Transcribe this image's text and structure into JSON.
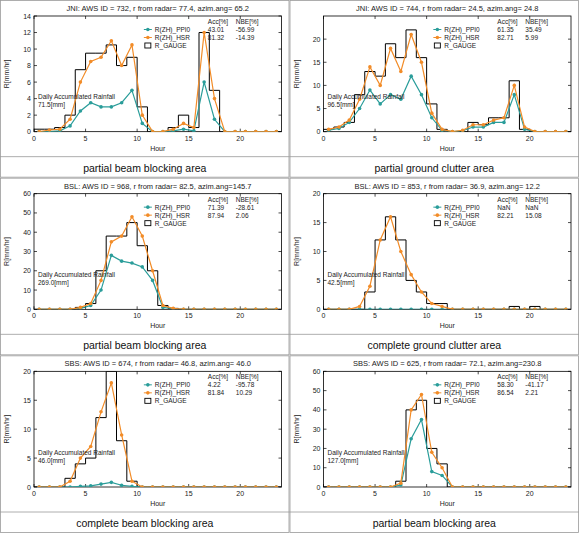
{
  "chart_data": [
    {
      "type": "line",
      "title": "JNI: AWS ID = 732, r from radar= 77.4, azim.ang= 65.2",
      "caption": "partial beam blocking area",
      "x_label": "Hour",
      "y_label": "R[mm/hr]",
      "xlim": [
        0,
        24
      ],
      "xticks": [
        0,
        5,
        10,
        15,
        20
      ],
      "ylim": [
        0,
        14
      ],
      "yticks": [
        0,
        2,
        4,
        6,
        8,
        10,
        12,
        14
      ],
      "stats_header": [
        "Acc[%]",
        "NBE[%]"
      ],
      "annotation": "Daily Accumulated Rainfall",
      "total": "71.5[mm]",
      "x": [
        0.5,
        1.5,
        2.5,
        3.5,
        4.5,
        5.5,
        6.5,
        7.5,
        8.5,
        9.5,
        10.5,
        11.5,
        12.5,
        13.5,
        14.5,
        15.5,
        16.5,
        17.5,
        18.5,
        19.5,
        20.5,
        21.5,
        22.5,
        23.5
      ],
      "series": [
        {
          "name": "R(ZH)_PPI0",
          "type": "line",
          "color": "#2a9d9a",
          "marker": "circle",
          "line_style": "solid",
          "acc": "43.01",
          "nbe": "-56.99",
          "values": [
            0,
            0,
            0.1,
            0.7,
            2.5,
            3.5,
            3,
            3,
            3.5,
            5,
            1,
            0,
            0,
            0.1,
            0.3,
            0.1,
            6,
            1.5,
            0,
            0,
            0,
            0,
            0,
            0
          ]
        },
        {
          "name": "R(ZH)_HSR",
          "type": "line",
          "color": "#f28c28",
          "marker": "circle",
          "line_style": "solid",
          "acc": "81.32",
          "nbe": "-14.39",
          "values": [
            0,
            0.2,
            0.3,
            1.5,
            6,
            8.5,
            9,
            11,
            8,
            10.5,
            2,
            0,
            0,
            0.3,
            1,
            0.5,
            12,
            4,
            0,
            0,
            0,
            0,
            0,
            0
          ]
        },
        {
          "name": "R_GAUGE",
          "type": "step",
          "color": "#000000",
          "marker": "square",
          "line_style": "solid",
          "values": [
            0.3,
            0.3,
            0.5,
            2,
            7.5,
            9.5,
            9.5,
            10.5,
            8,
            9,
            3,
            0,
            0,
            0.5,
            2,
            0.5,
            12,
            5,
            0,
            0,
            0,
            0,
            0,
            0
          ]
        }
      ]
    },
    {
      "type": "line",
      "title": "JNI: AWS ID = 744, r from radar= 24.5, azim.ang= 24.8",
      "caption": "partial ground clutter area",
      "x_label": "Hour",
      "y_label": "R[mm/hr]",
      "xlim": [
        0,
        24
      ],
      "xticks": [
        0,
        5,
        10,
        15,
        20
      ],
      "ylim": [
        0,
        25
      ],
      "yticks": [
        0,
        5,
        10,
        15,
        20
      ],
      "stats_header": [
        "Acc[%]",
        "NBE[%]"
      ],
      "annotation": "Daily Accumulated Rainfall",
      "total": "96.5[mm]",
      "x": [
        0.5,
        1.5,
        2.5,
        3.5,
        4.5,
        5.5,
        6.5,
        7.5,
        8.5,
        9.5,
        10.5,
        11.5,
        12.5,
        13.5,
        14.5,
        15.5,
        16.5,
        17.5,
        18.5,
        19.5,
        20.5,
        21.5,
        22.5,
        23.5
      ],
      "series": [
        {
          "name": "R(ZH)_PPI0",
          "type": "line",
          "color": "#2a9d9a",
          "marker": "circle",
          "line_style": "solid",
          "acc": "61.35",
          "nbe": "35.49",
          "values": [
            0.3,
            0.7,
            2,
            5,
            9,
            6,
            8,
            7,
            12,
            8,
            3,
            0.3,
            0,
            0.2,
            1,
            1,
            2,
            2,
            8,
            0.5,
            0,
            0,
            0,
            0
          ]
        },
        {
          "name": "R(ZH)_HSR",
          "type": "line",
          "color": "#f28c28",
          "marker": "circle",
          "line_style": "solid",
          "acc": "82.71",
          "nbe": "5.99",
          "values": [
            0.5,
            1,
            2.5,
            7,
            14,
            10,
            18,
            13,
            21,
            15,
            4,
            0.5,
            0,
            0.3,
            1.5,
            1.5,
            2.5,
            3,
            10,
            1,
            0,
            0,
            0,
            0
          ]
        },
        {
          "name": "R_GAUGE",
          "type": "step",
          "color": "#000000",
          "marker": "square",
          "line_style": "solid",
          "values": [
            0.5,
            1,
            2,
            8,
            13,
            12,
            19,
            16,
            22,
            16,
            6,
            0.5,
            0,
            0,
            2,
            1.5,
            3,
            3,
            11,
            0.5,
            0,
            0,
            0,
            0
          ]
        }
      ]
    },
    {
      "type": "line",
      "title": "BSL: AWS ID = 968, r from radar= 82.5, azim.ang=145.7",
      "caption": "partial beam blocking area",
      "x_label": "Hour",
      "y_label": "R[mm/hr]",
      "xlim": [
        0,
        24
      ],
      "xticks": [
        0,
        5,
        10,
        15,
        20
      ],
      "ylim": [
        0,
        60
      ],
      "yticks": [
        0,
        10,
        20,
        30,
        40,
        50,
        60
      ],
      "stats_header": [
        "Acc[%]",
        "NBE[%]"
      ],
      "annotation": "Daily Accumulated Rainfall",
      "total": "269.0[mm]",
      "x": [
        0.5,
        1.5,
        2.5,
        3.5,
        4.5,
        5.5,
        6.5,
        7.5,
        8.5,
        9.5,
        10.5,
        11.5,
        12.5,
        13.5,
        14.5,
        15.5,
        16.5,
        17.5,
        18.5,
        19.5,
        20.5,
        21.5,
        22.5,
        23.5
      ],
      "series": [
        {
          "name": "R(ZH)_PPI0",
          "type": "line",
          "color": "#2a9d9a",
          "marker": "circle",
          "line_style": "solid",
          "acc": "71.39",
          "nbe": "-28.61",
          "values": [
            0,
            0,
            0,
            0,
            0.5,
            2,
            10,
            28,
            25,
            24,
            22,
            15,
            1,
            0.3,
            0,
            0,
            0,
            0,
            0,
            0,
            0,
            0,
            0,
            0
          ]
        },
        {
          "name": "R(ZH)_HSR",
          "type": "line",
          "color": "#f28c28",
          "marker": "circle",
          "line_style": "solid",
          "acc": "87.94",
          "nbe": "2.06",
          "values": [
            0,
            0,
            0,
            0,
            1,
            3,
            15,
            35,
            38,
            48,
            38,
            20,
            2,
            0.5,
            0,
            0,
            0,
            0,
            0,
            0,
            0,
            0,
            0,
            0
          ]
        },
        {
          "name": "R_GAUGE",
          "type": "step",
          "color": "#000000",
          "marker": "square",
          "line_style": "solid",
          "values": [
            0,
            0,
            0,
            0,
            1,
            3,
            20,
            38,
            38,
            45,
            33,
            20,
            2,
            0.5,
            0,
            0,
            0,
            0,
            0,
            0,
            0,
            0,
            0,
            0
          ]
        }
      ]
    },
    {
      "type": "line",
      "title": "BSL: AWS ID = 853, r from radar= 36.9, azim.ang= 12.2",
      "caption": "complete ground clutter area",
      "x_label": "Hour",
      "y_label": "R[mm/hr]",
      "xlim": [
        0,
        24
      ],
      "xticks": [
        0,
        5,
        10,
        15,
        20
      ],
      "ylim": [
        0,
        20
      ],
      "yticks": [
        0,
        5,
        10,
        15,
        20
      ],
      "stats_header": [
        "Acc[%]",
        "NBE[%]"
      ],
      "annotation": "Daily Accumulated Rainfall",
      "total": "42.5[mm]",
      "x": [
        0.5,
        1.5,
        2.5,
        3.5,
        4.5,
        5.5,
        6.5,
        7.5,
        8.5,
        9.5,
        10.5,
        11.5,
        12.5,
        13.5,
        14.5,
        15.5,
        16.5,
        17.5,
        18.5,
        19.5,
        20.5,
        21.5,
        22.5,
        23.5
      ],
      "series": [
        {
          "name": "R(ZH)_PPI0",
          "type": "line",
          "color": "#2a9d9a",
          "marker": "circle",
          "line_style": "solid",
          "acc": "NaN",
          "nbe": "NaN",
          "values": [
            0,
            0,
            0,
            0,
            0,
            0,
            0,
            0,
            0,
            0,
            0,
            0,
            0,
            0,
            0,
            0,
            0,
            0,
            0,
            0,
            0,
            0,
            0,
            0
          ]
        },
        {
          "name": "R(ZH)_HSR",
          "type": "line",
          "color": "#f28c28",
          "marker": "circle",
          "line_style": "solid",
          "acc": "82.21",
          "nbe": "15.08",
          "values": [
            0,
            0,
            0,
            0.5,
            4,
            12,
            16,
            10,
            6,
            3,
            1,
            0.5,
            0,
            0,
            0,
            0,
            0,
            0,
            0,
            0,
            0,
            0,
            0,
            0
          ]
        },
        {
          "name": "R_GAUGE",
          "type": "step",
          "color": "#000000",
          "marker": "square",
          "line_style": "solid",
          "values": [
            0,
            0,
            0,
            0,
            3,
            12,
            16,
            12,
            5,
            3,
            1,
            1,
            0,
            0,
            0,
            0,
            0,
            0,
            0.5,
            0,
            0.5,
            0,
            0,
            0
          ]
        }
      ]
    },
    {
      "type": "line",
      "title": "SBS: AWS ID = 674, r from radar= 46.8, azim.ang= 46.0",
      "caption": "complete beam blocking area",
      "x_label": "Hour",
      "y_label": "R[mm/hr]",
      "xlim": [
        0,
        24
      ],
      "xticks": [
        0,
        5,
        10,
        15,
        20
      ],
      "ylim": [
        0,
        20
      ],
      "yticks": [
        0,
        5,
        10,
        15,
        20
      ],
      "stats_header": [
        "Acc[%]",
        "NBE[%]"
      ],
      "annotation": "Daily Accumulated Rainfall",
      "total": "46.0[mm]",
      "x": [
        0.5,
        1.5,
        2.5,
        3.5,
        4.5,
        5.5,
        6.5,
        7.5,
        8.5,
        9.5,
        10.5,
        11.5,
        12.5,
        13.5,
        14.5,
        15.5,
        16.5,
        17.5,
        18.5,
        19.5,
        20.5,
        21.5,
        22.5,
        23.5
      ],
      "series": [
        {
          "name": "R(ZH)_PPI0",
          "type": "line",
          "color": "#2a9d9a",
          "marker": "circle",
          "line_style": "solid",
          "acc": "4.22",
          "nbe": "-95.78",
          "values": [
            0,
            0,
            0,
            0,
            0.1,
            0.2,
            0.5,
            0.8,
            0.3,
            0.1,
            0,
            0,
            0,
            0,
            0,
            0,
            0,
            0,
            0,
            0,
            0,
            0,
            0,
            0
          ]
        },
        {
          "name": "R(ZH)_HSR",
          "type": "line",
          "color": "#f28c28",
          "marker": "circle",
          "line_style": "solid",
          "acc": "81.84",
          "nbe": "10.29",
          "values": [
            0,
            0,
            0,
            1,
            5,
            7,
            13,
            18,
            9,
            1,
            0,
            0,
            0,
            0,
            0,
            0,
            0,
            0,
            0,
            0,
            0,
            0,
            0,
            0
          ]
        },
        {
          "name": "R_GAUGE",
          "type": "step",
          "color": "#000000",
          "marker": "square",
          "line_style": "solid",
          "values": [
            0,
            0,
            0,
            1.5,
            4,
            5,
            12,
            20,
            8,
            1,
            0,
            0,
            0,
            0,
            0,
            0,
            0,
            0,
            0,
            0,
            0,
            0,
            0,
            0
          ]
        }
      ]
    },
    {
      "type": "line",
      "title": "SBS: AWS ID = 625, r from radar= 72.1, azim.ang=230.8",
      "caption": "partial beam blocking area",
      "x_label": "Hour",
      "y_label": "R[mm/hr]",
      "xlim": [
        0,
        24
      ],
      "xticks": [
        0,
        5,
        10,
        15,
        20
      ],
      "ylim": [
        0,
        60
      ],
      "yticks": [
        0,
        10,
        20,
        30,
        40,
        50,
        60
      ],
      "stats_header": [
        "Acc[%]",
        "NBE[%]"
      ],
      "annotation": "Daily Accumulated Rainfall",
      "total": "127.0[mm]",
      "x": [
        0.5,
        1.5,
        2.5,
        3.5,
        4.5,
        5.5,
        6.5,
        7.5,
        8.5,
        9.5,
        10.5,
        11.5,
        12.5,
        13.5,
        14.5,
        15.5,
        16.5,
        17.5,
        18.5,
        19.5,
        20.5,
        21.5,
        22.5,
        23.5
      ],
      "series": [
        {
          "name": "R(ZH)_PPI0",
          "type": "line",
          "color": "#2a9d9a",
          "marker": "circle",
          "line_style": "solid",
          "acc": "58.30",
          "nbe": "-41.17",
          "values": [
            0,
            0,
            0,
            0,
            0,
            0,
            0,
            1,
            25,
            35,
            8,
            6,
            0,
            0,
            0,
            0,
            0,
            0,
            0,
            0,
            0,
            0,
            0,
            0
          ]
        },
        {
          "name": "R(ZH)_HSR",
          "type": "line",
          "color": "#f28c28",
          "marker": "circle",
          "line_style": "solid",
          "acc": "86.54",
          "nbe": "2.21",
          "values": [
            0,
            0,
            0,
            0,
            0,
            0,
            0,
            2,
            40,
            48,
            18,
            10,
            0,
            0,
            0,
            0,
            0,
            0,
            0,
            0,
            0,
            0,
            0,
            0
          ]
        },
        {
          "name": "R_GAUGE",
          "type": "step",
          "color": "#000000",
          "marker": "square",
          "line_style": "solid",
          "values": [
            0,
            0,
            0,
            0,
            0,
            0,
            0,
            3,
            40,
            45,
            20,
            12,
            0,
            0,
            0,
            0,
            0,
            0,
            0,
            0,
            0,
            0,
            0,
            0
          ]
        }
      ]
    }
  ]
}
